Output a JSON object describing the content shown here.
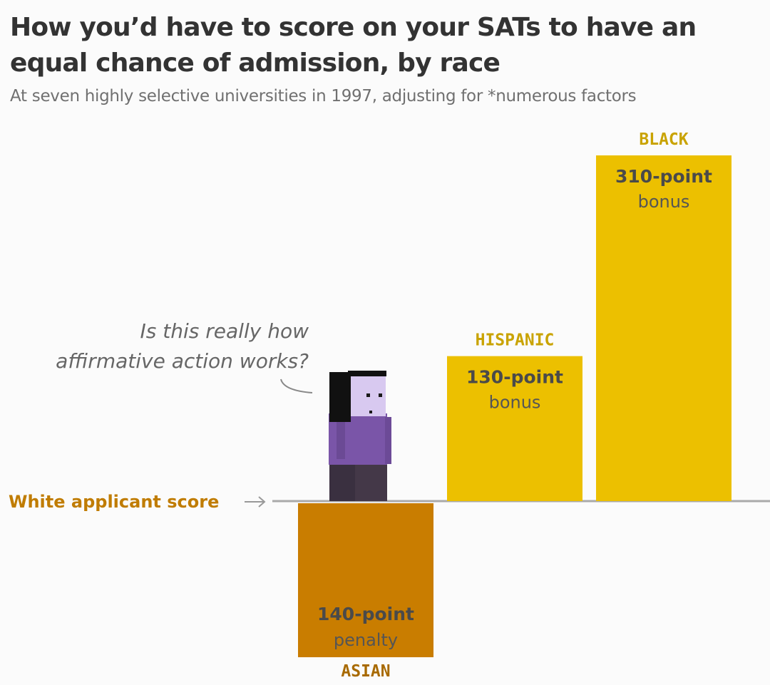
{
  "title": "How you’d have to score on your SATs to have an equal chance of admission, by race",
  "subtitle": "At seven highly selective universities in 1997, adjusting for *numerous factors",
  "annotation": [
    "Is this really how",
    "affirmative action works?"
  ],
  "baseline_label": "White applicant score",
  "colors": {
    "bonus": "#ecc000",
    "penalty": "#c97d00",
    "baseline": "#aaaaaa",
    "bonus_label": "#c9a300",
    "penalty_label": "#a86a00"
  },
  "chart_data": {
    "type": "bar",
    "baseline": 0,
    "ylim": [
      -140,
      310
    ],
    "bars": [
      {
        "category": "ASIAN",
        "value": -140,
        "main": "140-point",
        "sub": "penalty"
      },
      {
        "category": "HISPANIC",
        "value": 130,
        "main": "130-point",
        "sub": "bonus"
      },
      {
        "category": "BLACK",
        "value": 310,
        "main": "310-point",
        "sub": "bonus"
      }
    ]
  }
}
